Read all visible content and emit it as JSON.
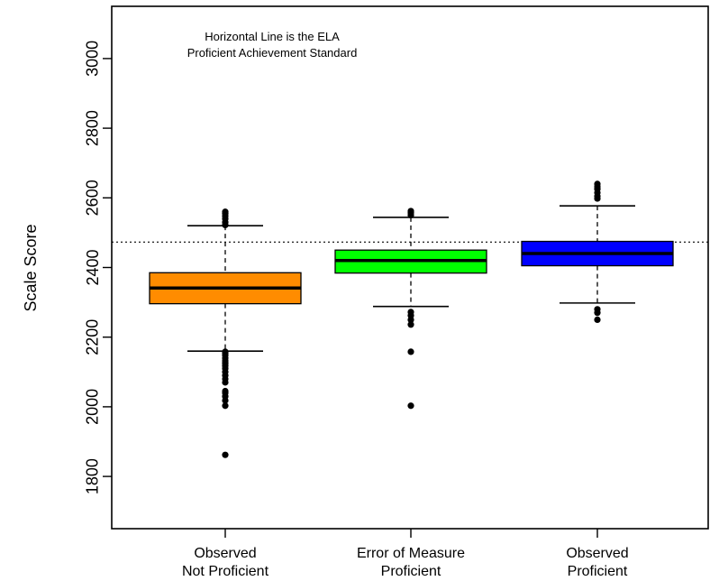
{
  "chart_data": {
    "type": "boxplot",
    "title": "",
    "xlabel": "",
    "ylabel": "Scale Score",
    "ylim": [
      1650,
      3150
    ],
    "yticks": [
      1800,
      2000,
      2200,
      2400,
      2600,
      2800,
      3000
    ],
    "grid": false,
    "legend": "none",
    "reference_line": {
      "value": 2473,
      "style": "dotted",
      "color": "#000000"
    },
    "annotation": {
      "lines": [
        "Horizontal Line is the ELA",
        "Proficient Achievement Standard"
      ]
    },
    "categories": [
      {
        "label_lines": [
          "Observed",
          "Not Proficient"
        ],
        "color": "#ff8c00",
        "q1": 2296,
        "median": 2341,
        "q3": 2385,
        "whisker_low": 2160,
        "whisker_high": 2520,
        "outliers": [
          1862,
          2003,
          2018,
          2030,
          2040,
          2045,
          2070,
          2080,
          2090,
          2100,
          2110,
          2118,
          2125,
          2132,
          2140,
          2148,
          2155,
          2158,
          2522,
          2530,
          2540,
          2548,
          2555,
          2560
        ]
      },
      {
        "label_lines": [
          "Error of Measure",
          "Proficient"
        ],
        "color": "#00ff00",
        "q1": 2384,
        "median": 2420,
        "q3": 2450,
        "whisker_low": 2288,
        "whisker_high": 2544,
        "outliers": [
          2003,
          2158,
          2236,
          2250,
          2262,
          2272,
          2550,
          2557,
          2562
        ]
      },
      {
        "label_lines": [
          "Observed",
          "Proficient"
        ],
        "color": "#0000ff",
        "q1": 2405,
        "median": 2440,
        "q3": 2475,
        "whisker_low": 2298,
        "whisker_high": 2577,
        "outliers": [
          2250,
          2270,
          2280,
          2598,
          2605,
          2615,
          2625,
          2632,
          2640
        ]
      }
    ]
  }
}
